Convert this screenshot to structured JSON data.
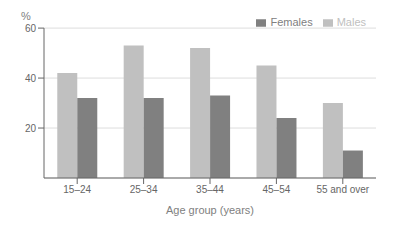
{
  "chart_data": {
    "type": "bar",
    "xlabel": "Age group (years)",
    "ylabel": "%",
    "categories": [
      "15–24",
      "25–34",
      "35–44",
      "45–54",
      "55 and over"
    ],
    "series": [
      {
        "name": "Males",
        "color": "#c0c0c0",
        "values": [
          42,
          53,
          52,
          45,
          30
        ]
      },
      {
        "name": "Females",
        "color": "#808080",
        "values": [
          32,
          32,
          33,
          24,
          11
        ]
      }
    ],
    "ylim": [
      0,
      60
    ],
    "yticks": [
      20,
      40,
      60
    ],
    "grid": true,
    "legend": "upper right"
  }
}
